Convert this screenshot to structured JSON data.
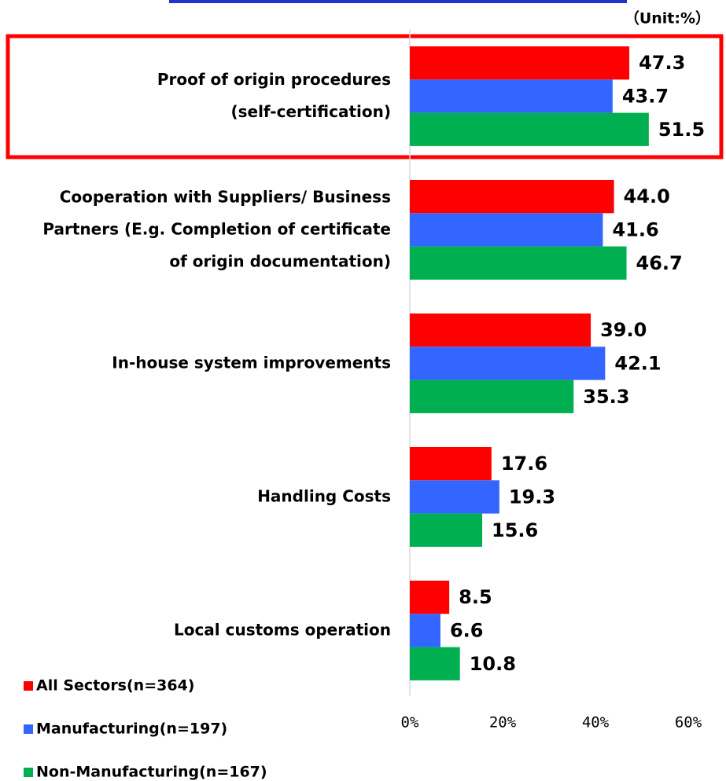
{
  "chart_data": {
    "type": "barh",
    "unit_label": "（Unit:%）",
    "categories": [
      "Proof of origin procedures\n(self-certification)",
      "Cooperation with Suppliers/ Business\nPartners (E.g. Completion of certificate\nof origin documentation)",
      "In-house system improvements",
      "Handling Costs",
      "Local customs operation"
    ],
    "series": [
      {
        "name": "All Sectors(n=364)",
        "color": "#ff0000",
        "values": [
          47.3,
          44.0,
          39.0,
          17.6,
          8.5
        ],
        "value_labels": [
          "47.3",
          "44.0",
          "39.0",
          "17.6",
          "8.5"
        ]
      },
      {
        "name": "Manufacturing(n=197)",
        "color": "#3366ff",
        "values": [
          43.7,
          41.6,
          42.1,
          19.3,
          6.6
        ],
        "value_labels": [
          "43.7",
          "41.6",
          "42.1",
          "19.3",
          "6.6"
        ]
      },
      {
        "name": "Non-Manufacturing(n=167)",
        "color": "#00b050",
        "values": [
          51.5,
          46.7,
          35.3,
          15.6,
          10.8
        ],
        "value_labels": [
          "51.5",
          "46.7",
          "35.3",
          "15.6",
          "10.8"
        ]
      }
    ],
    "xlim": [
      0,
      60
    ],
    "xticks": [
      {
        "value": 0,
        "label": "0%"
      },
      {
        "value": 20,
        "label": "20%"
      },
      {
        "value": 40,
        "label": "40%"
      },
      {
        "value": 60,
        "label": "60%"
      }
    ]
  }
}
